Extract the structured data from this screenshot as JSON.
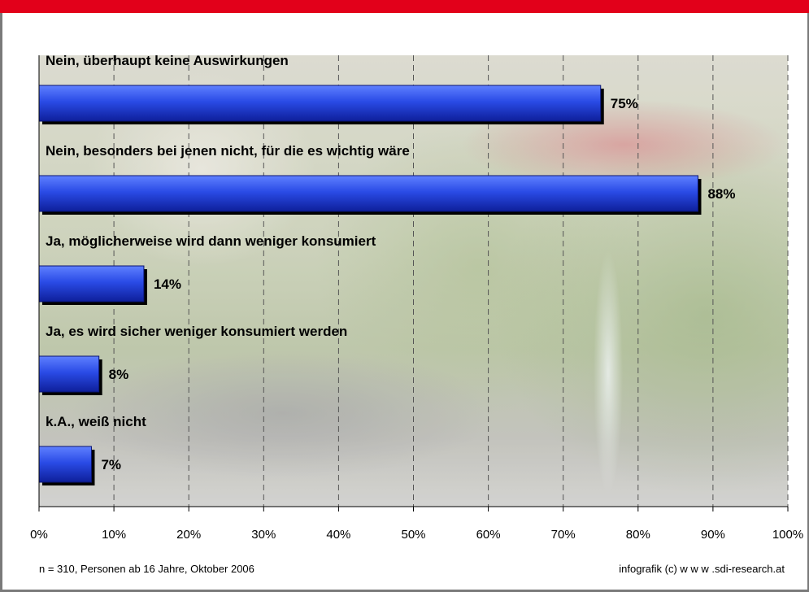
{
  "footer": {
    "note": "n = 310, Personen ab 16 Jahre, Oktober 2006",
    "credit": "infografik (c) w w w .sdi-research.at"
  },
  "colors": {
    "header_bar": "#e2001a",
    "bar_fill": "#1f3fd8",
    "bar_shadow": "#000000"
  },
  "chart_data": {
    "type": "bar",
    "orientation": "horizontal",
    "categories": [
      "Nein, überhaupt keine Auswirkungen",
      "Nein, besonders bei jenen nicht, für die es wichtig wäre",
      "Ja, möglicherweise wird dann weniger konsumiert",
      "Ja, es wird sicher weniger konsumiert werden",
      "k.A., weiß nicht"
    ],
    "values": [
      75,
      88,
      14,
      8,
      7
    ],
    "value_labels": [
      "75%",
      "88%",
      "14%",
      "8%",
      "7%"
    ],
    "xlim": [
      0,
      100
    ],
    "x_ticks": [
      "0%",
      "10%",
      "20%",
      "30%",
      "40%",
      "50%",
      "60%",
      "70%",
      "80%",
      "90%",
      "100%"
    ],
    "grid": "vertical dashed",
    "legend": "none"
  }
}
